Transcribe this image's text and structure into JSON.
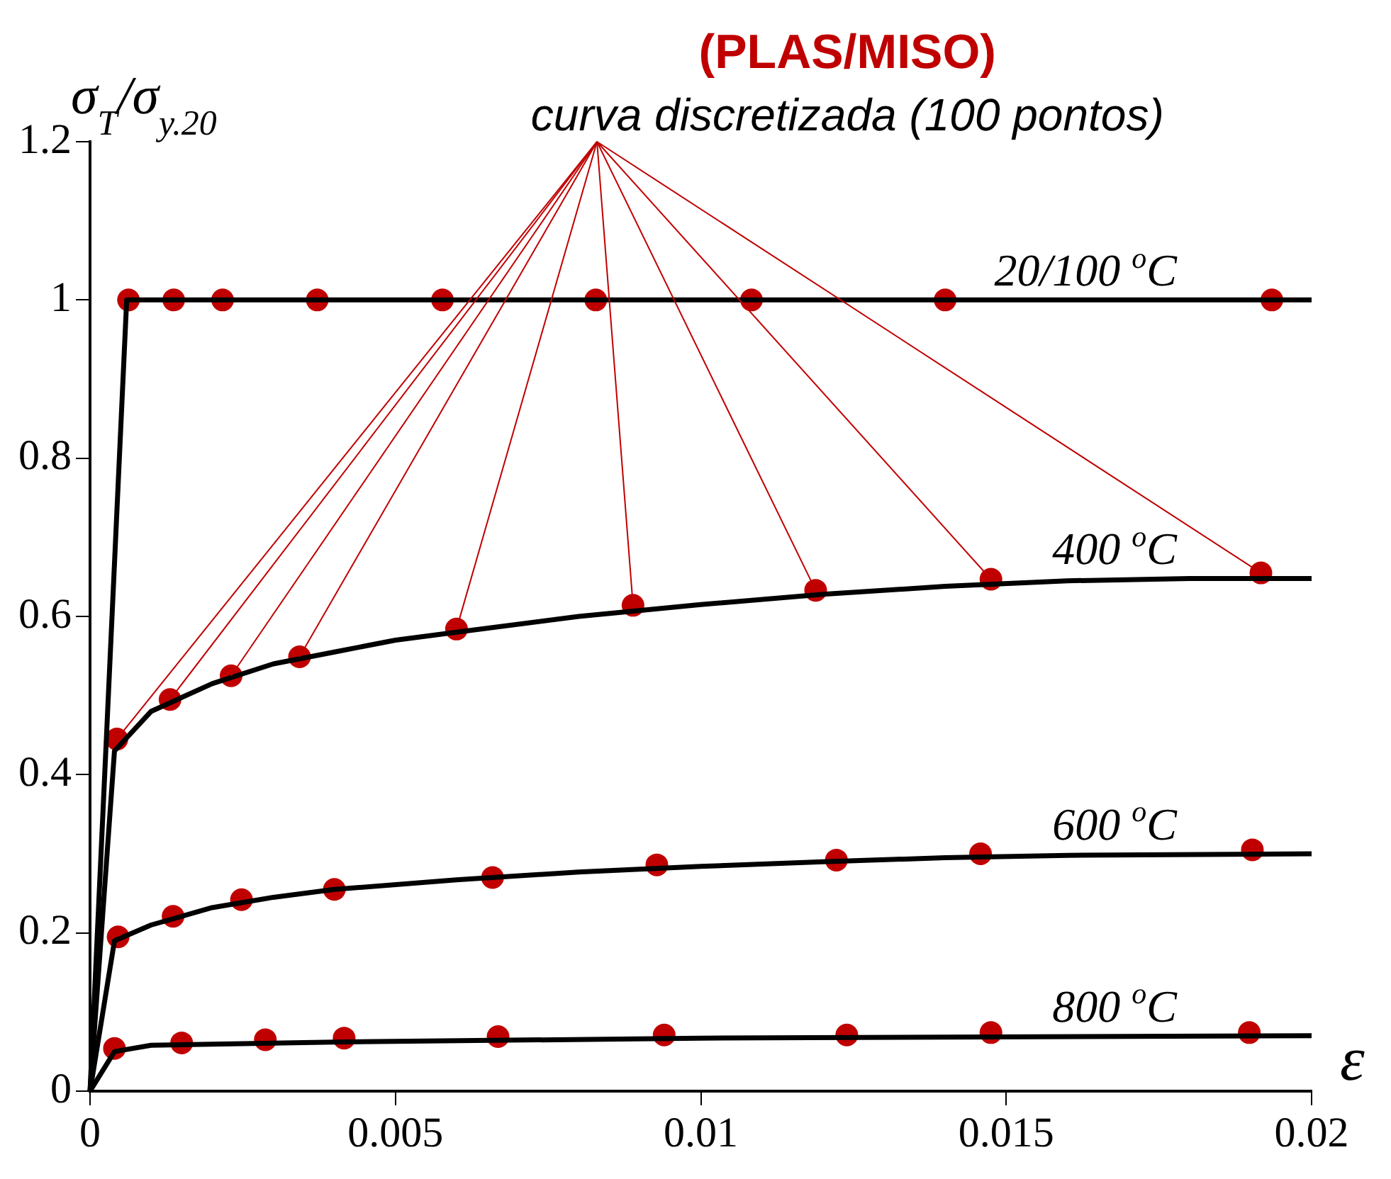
{
  "chart_data": {
    "type": "line",
    "title": "(PLAS/MISO)",
    "subtitle": "curva discretizada (100 pontos)",
    "xlabel": "ε",
    "ylabel": "σ$_{T}$/σ$_{y.20}$",
    "xlim": [
      0,
      0.02
    ],
    "xticks": [
      0,
      0.005,
      0.01,
      0.015,
      0.02
    ],
    "ylim": [
      0,
      1.2
    ],
    "yticks": [
      0,
      0.2,
      0.4,
      0.6,
      0.8,
      1,
      1.2
    ],
    "grid": false,
    "legend": false,
    "series": [
      {
        "type": "line",
        "name": "20/100 $^{o}$C",
        "color": "#000000",
        "marker": "none",
        "x": [
          0,
          0.0006,
          0.02
        ],
        "values": [
          0,
          1,
          1
        ]
      },
      {
        "type": "line",
        "name": "400 $^{o}$C",
        "color": "#000000",
        "marker": "none",
        "x": [
          0,
          0.0004,
          0.001,
          0.002,
          0.003,
          0.004,
          0.005,
          0.006,
          0.008,
          0.01,
          0.012,
          0.014,
          0.016,
          0.018,
          0.02
        ],
        "values": [
          0,
          0.43,
          0.48,
          0.515,
          0.54,
          0.555,
          0.57,
          0.58,
          0.6,
          0.615,
          0.628,
          0.638,
          0.645,
          0.648,
          0.648
        ]
      },
      {
        "type": "line",
        "name": "600 $^{o}$C",
        "color": "#000000",
        "marker": "none",
        "x": [
          0,
          0.0004,
          0.001,
          0.002,
          0.003,
          0.004,
          0.006,
          0.008,
          0.01,
          0.012,
          0.014,
          0.016,
          0.02
        ],
        "values": [
          0,
          0.19,
          0.21,
          0.232,
          0.245,
          0.255,
          0.267,
          0.277,
          0.284,
          0.29,
          0.295,
          0.298,
          0.3
        ]
      },
      {
        "type": "line",
        "name": "800 $^{o}$C",
        "color": "#000000",
        "marker": "none",
        "x": [
          0,
          0.0004,
          0.001,
          0.004,
          0.01,
          0.02
        ],
        "values": [
          0,
          0.05,
          0.058,
          0.062,
          0.067,
          0.07
        ]
      },
      {
        "type": "scatter",
        "color": "#c00000",
        "marker": "circle",
        "x": [
          0.00063,
          0.00137,
          0.00217,
          0.00372,
          0.00577,
          0.00828,
          0.01083,
          0.014,
          0.01935
        ],
        "values": [
          1,
          1,
          1,
          1,
          1,
          1,
          1,
          1,
          1
        ]
      },
      {
        "type": "scatter",
        "color": "#c00000",
        "marker": "circle",
        "x": [
          0.00044,
          0.00131,
          0.00231,
          0.00343,
          0.006,
          0.00889,
          0.01188,
          0.01475,
          0.01917
        ],
        "values": [
          0.445,
          0.495,
          0.525,
          0.549,
          0.584,
          0.614,
          0.633,
          0.647,
          0.655
        ]
      },
      {
        "type": "scatter",
        "color": "#c00000",
        "marker": "circle",
        "x": [
          0.00046,
          0.00136,
          0.00248,
          0.004,
          0.00659,
          0.00928,
          0.01222,
          0.01458,
          0.01903
        ],
        "values": [
          0.195,
          0.221,
          0.242,
          0.255,
          0.27,
          0.286,
          0.292,
          0.3,
          0.305
        ]
      },
      {
        "type": "scatter",
        "color": "#c00000",
        "marker": "circle",
        "x": [
          0.0004,
          0.0015,
          0.00287,
          0.00416,
          0.00668,
          0.0094,
          0.01239,
          0.01475,
          0.01898
        ],
        "values": [
          0.054,
          0.061,
          0.065,
          0.067,
          0.069,
          0.071,
          0.071,
          0.074,
          0.074
        ]
      }
    ]
  }
}
